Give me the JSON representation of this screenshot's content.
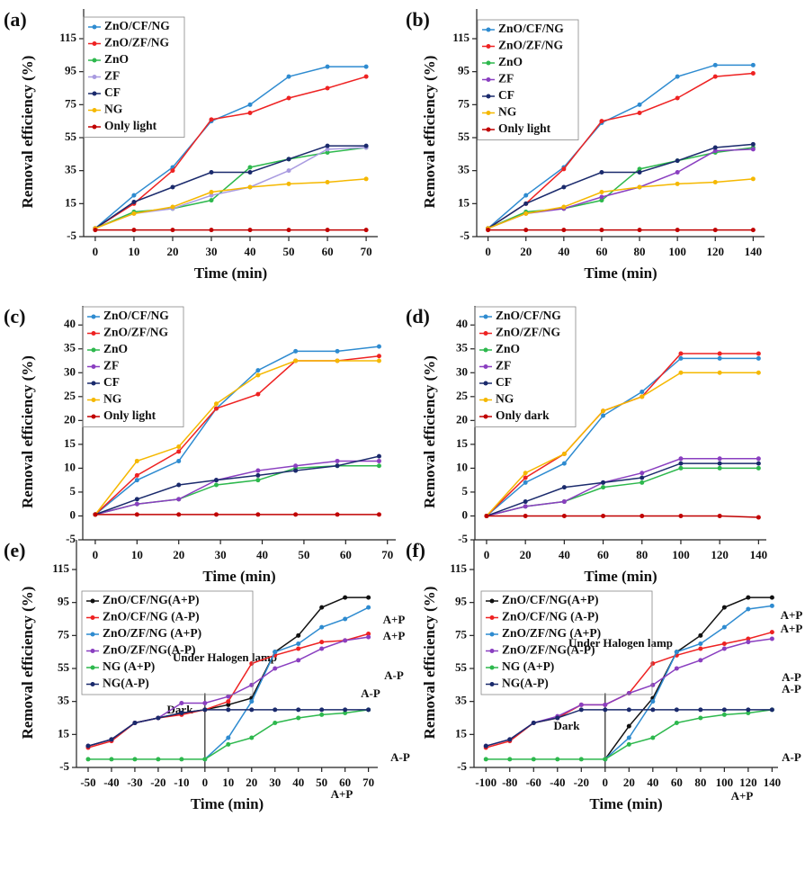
{
  "chart_data": [
    {
      "type": "line",
      "label": "(a)",
      "y_label": "Removal efficiency (%)",
      "x_label": "Time (min)",
      "x": [
        0,
        10,
        20,
        30,
        40,
        50,
        60,
        70
      ],
      "xlim": [
        -3,
        73
      ],
      "xticks": [
        0,
        10,
        20,
        30,
        40,
        50,
        60,
        70
      ],
      "ylim": [
        -5,
        133
      ],
      "yticks": [
        -5,
        15,
        35,
        55,
        75,
        95,
        115
      ],
      "series": [
        {
          "name": "ZnO/CF/NG",
          "color": "#2e8bd0",
          "values": [
            0,
            20,
            37,
            65,
            75,
            92,
            98,
            98
          ]
        },
        {
          "name": "ZnO/ZF/NG",
          "color": "#ee2222",
          "values": [
            0,
            15,
            35,
            66,
            70,
            79,
            85,
            92
          ]
        },
        {
          "name": "ZnO",
          "color": "#2db84d",
          "values": [
            0,
            10,
            12,
            17,
            37,
            42,
            46,
            49
          ]
        },
        {
          "name": "ZF",
          "color": "#a99be0",
          "values": [
            0,
            9,
            12,
            20,
            25,
            35,
            48,
            49
          ]
        },
        {
          "name": "CF",
          "color": "#1a2a6c",
          "values": [
            0,
            16,
            25,
            34,
            34,
            42,
            50,
            50
          ]
        },
        {
          "name": "NG",
          "color": "#f5b800",
          "values": [
            0,
            9,
            13,
            22,
            25,
            27,
            28,
            30
          ]
        },
        {
          "name": "Only light",
          "color": "#c00000",
          "values": [
            -1,
            -1,
            -1,
            -1,
            -1,
            -1,
            -1,
            -1
          ]
        }
      ]
    },
    {
      "type": "line",
      "label": "(b)",
      "y_label": "Removal efficiency (%)",
      "x_label": "Time (min)",
      "x": [
        0,
        20,
        40,
        60,
        80,
        100,
        120,
        140
      ],
      "xlim": [
        -6,
        146
      ],
      "xticks": [
        0,
        20,
        40,
        60,
        80,
        100,
        120,
        140
      ],
      "ylim": [
        -5,
        133
      ],
      "yticks": [
        -5,
        15,
        35,
        55,
        75,
        95,
        115
      ],
      "series": [
        {
          "name": "ZnO/CF/NG",
          "color": "#2e8bd0",
          "values": [
            0,
            20,
            37,
            64,
            75,
            92,
            99,
            99
          ]
        },
        {
          "name": "ZnO/ZF/NG",
          "color": "#ee2222",
          "values": [
            0,
            15,
            36,
            65,
            70,
            79,
            92,
            94
          ]
        },
        {
          "name": "ZnO",
          "color": "#2db84d",
          "values": [
            0,
            10,
            12,
            17,
            36,
            41,
            46,
            49
          ]
        },
        {
          "name": "ZF",
          "color": "#8a3fc0",
          "values": [
            0,
            9,
            12,
            19,
            25,
            34,
            47,
            48
          ]
        },
        {
          "name": "CF",
          "color": "#1a2a6c",
          "values": [
            0,
            15,
            25,
            34,
            34,
            41,
            49,
            51
          ]
        },
        {
          "name": "NG",
          "color": "#f5b800",
          "values": [
            0,
            9,
            13,
            22,
            25,
            27,
            28,
            30
          ]
        },
        {
          "name": "Only light",
          "color": "#c00000",
          "values": [
            -1,
            -1,
            -1,
            -1,
            -1,
            -1,
            -1,
            -1
          ]
        }
      ]
    },
    {
      "type": "line",
      "label": "(c)",
      "y_label": "Removal efficiency (%)",
      "x_label": "Time (min)",
      "x": [
        0,
        10,
        20,
        29,
        39,
        48,
        58,
        68
      ],
      "xlim": [
        -3,
        72
      ],
      "xticks": [
        0,
        10,
        20,
        30,
        40,
        50,
        60,
        70
      ],
      "ylim": [
        -5,
        44
      ],
      "yticks": [
        -5,
        0,
        5,
        10,
        15,
        20,
        25,
        30,
        35,
        40
      ],
      "series": [
        {
          "name": "ZnO/CF/NG",
          "color": "#2e8bd0",
          "values": [
            0.3,
            7.5,
            11.5,
            22.5,
            30.5,
            34.5,
            34.5,
            35.5
          ]
        },
        {
          "name": "ZnO/ZF/NG",
          "color": "#ee2222",
          "values": [
            0.3,
            8.5,
            13.5,
            22.5,
            25.5,
            32.5,
            32.5,
            33.5
          ]
        },
        {
          "name": "ZnO",
          "color": "#2db84d",
          "values": [
            0.3,
            2.5,
            3.5,
            6.5,
            7.5,
            10,
            10.5,
            10.5
          ]
        },
        {
          "name": "ZF",
          "color": "#8a3fc0",
          "values": [
            0.3,
            2.5,
            3.5,
            7.5,
            9.5,
            10.5,
            11.5,
            11.5
          ]
        },
        {
          "name": "CF",
          "color": "#1a2a6c",
          "values": [
            0.3,
            3.5,
            6.5,
            7.5,
            8.5,
            9.5,
            10.5,
            12.5
          ]
        },
        {
          "name": "NG",
          "color": "#f5b800",
          "values": [
            0.3,
            11.5,
            14.5,
            23.5,
            29.5,
            32.5,
            32.5,
            32.5
          ]
        },
        {
          "name": "Only light",
          "color": "#c00000",
          "values": [
            0.3,
            0.3,
            0.3,
            0.3,
            0.3,
            0.3,
            0.3,
            0.3
          ]
        }
      ]
    },
    {
      "type": "line",
      "label": "(d)",
      "y_label": "Removal efficiency (%)",
      "x_label": "Time (min)",
      "x": [
        0,
        20,
        40,
        60,
        80,
        100,
        120,
        140
      ],
      "xlim": [
        -6,
        144
      ],
      "xticks": [
        0,
        20,
        40,
        60,
        80,
        100,
        120,
        140
      ],
      "ylim": [
        -5,
        44
      ],
      "yticks": [
        -5,
        0,
        5,
        10,
        15,
        20,
        25,
        30,
        35,
        40
      ],
      "series": [
        {
          "name": "ZnO/CF/NG",
          "color": "#2e8bd0",
          "values": [
            0,
            7,
            11,
            21,
            26,
            33,
            33,
            33
          ]
        },
        {
          "name": "ZnO/ZF/NG",
          "color": "#ee2222",
          "values": [
            0,
            8,
            13,
            22,
            25,
            34,
            34,
            34
          ]
        },
        {
          "name": "ZnO",
          "color": "#2db84d",
          "values": [
            0,
            2,
            3,
            6,
            7,
            10,
            10,
            10
          ]
        },
        {
          "name": "ZF",
          "color": "#8a3fc0",
          "values": [
            0,
            2,
            3,
            7,
            9,
            12,
            12,
            12
          ]
        },
        {
          "name": "CF",
          "color": "#1a2a6c",
          "values": [
            0,
            3,
            6,
            7,
            8,
            11,
            11,
            11
          ]
        },
        {
          "name": "NG",
          "color": "#f5b800",
          "values": [
            0,
            9,
            13,
            22,
            25,
            30,
            30,
            30
          ]
        },
        {
          "name": "Only  dark",
          "color": "#c00000",
          "values": [
            0,
            0,
            0,
            0,
            0,
            0,
            0,
            -0.3
          ]
        }
      ]
    },
    {
      "type": "line",
      "label": "(e)",
      "y_label": "Removal efficiency (%)",
      "x_label": "Time (min)",
      "x": [
        -50,
        -40,
        -30,
        -20,
        -10,
        0,
        10,
        20,
        30,
        40,
        50,
        60,
        70
      ],
      "xlim": [
        -55,
        74
      ],
      "xticks": [
        -50,
        -40,
        -30,
        -20,
        -10,
        0,
        10,
        20,
        30,
        40,
        50,
        60,
        70
      ],
      "ylim": [
        -5,
        133
      ],
      "yticks": [
        -5,
        15,
        35,
        55,
        75,
        95,
        115
      ],
      "annotations": [
        "Dark",
        "Under Halogen lamp",
        "A+P",
        "A+P",
        "A-P",
        "A-P",
        "A-P",
        "A+P"
      ],
      "series": [
        {
          "name": "ZnO/CF/NG(A+P)",
          "color": "#111111",
          "values": [
            8,
            12,
            22,
            25,
            28,
            30,
            33,
            37,
            65,
            75,
            92,
            98,
            98
          ]
        },
        {
          "name": "ZnO/CF/NG (A-P)",
          "color": "#ee2222",
          "values": [
            7,
            11,
            22,
            25,
            27,
            30,
            35,
            58,
            63,
            67,
            71,
            72,
            76
          ]
        },
        {
          "name": "ZnO/ZF/NG (A+P)",
          "color": "#2e8bd0",
          "values": [
            null,
            null,
            null,
            null,
            null,
            0,
            13,
            35,
            65,
            70,
            80,
            85,
            92
          ]
        },
        {
          "name": "ZnO/ZF/NG(A-P)",
          "color": "#8a3fc0",
          "values": [
            8,
            12,
            22,
            25,
            34,
            34,
            38,
            45,
            55,
            60,
            67,
            72,
            74
          ]
        },
        {
          "name": "NG (A+P)",
          "color": "#2db84d",
          "values": [
            0,
            0,
            0,
            0,
            0,
            0,
            9,
            13,
            22,
            25,
            27,
            28,
            30
          ]
        },
        {
          "name": "NG(A-P)",
          "color": "#1a2a6c",
          "values": [
            8,
            12,
            22,
            25,
            28,
            30,
            30,
            30,
            30,
            30,
            30,
            30,
            30
          ]
        }
      ]
    },
    {
      "type": "line",
      "label": "(f)",
      "y_label": "Removal efficiency (%)",
      "x_label": "Time (min)",
      "x": [
        -100,
        -80,
        -60,
        -40,
        -20,
        0,
        20,
        40,
        60,
        80,
        100,
        120,
        140
      ],
      "xlim": [
        -110,
        145
      ],
      "xticks": [
        -100,
        -80,
        -60,
        -40,
        -20,
        0,
        20,
        40,
        60,
        80,
        100,
        120,
        140
      ],
      "ylim": [
        -5,
        133
      ],
      "yticks": [
        -5,
        15,
        35,
        55,
        75,
        95,
        115
      ],
      "annotations": [
        "Dark",
        "Under Halogen lamp",
        "A+P",
        "A+P",
        "A-P",
        "A-P",
        "A-P",
        "A+P"
      ],
      "series": [
        {
          "name": "ZnO/CF/NG(A+P)",
          "color": "#111111",
          "values": [
            null,
            null,
            null,
            null,
            null,
            0,
            20,
            37,
            65,
            75,
            92,
            98,
            98
          ]
        },
        {
          "name": "ZnO/CF/NG (A-P)",
          "color": "#ee2222",
          "values": [
            7,
            11,
            22,
            25,
            33,
            33,
            40,
            58,
            63,
            67,
            70,
            73,
            77
          ]
        },
        {
          "name": "ZnO/ZF/NG (A+P)",
          "color": "#2e8bd0",
          "values": [
            null,
            null,
            null,
            null,
            null,
            0,
            13,
            35,
            65,
            70,
            80,
            91,
            93
          ]
        },
        {
          "name": "ZnO/ZF/NG(A-P)",
          "color": "#8a3fc0",
          "values": [
            8,
            12,
            22,
            26,
            33,
            33,
            40,
            45,
            55,
            60,
            67,
            71,
            73
          ]
        },
        {
          "name": "NG (A+P)",
          "color": "#2db84d",
          "values": [
            0,
            0,
            0,
            0,
            0,
            0,
            9,
            13,
            22,
            25,
            27,
            28,
            30
          ]
        },
        {
          "name": "NG(A-P)",
          "color": "#1a2a6c",
          "values": [
            8,
            12,
            22,
            25,
            30,
            30,
            30,
            30,
            30,
            30,
            30,
            30,
            30
          ]
        }
      ]
    }
  ]
}
